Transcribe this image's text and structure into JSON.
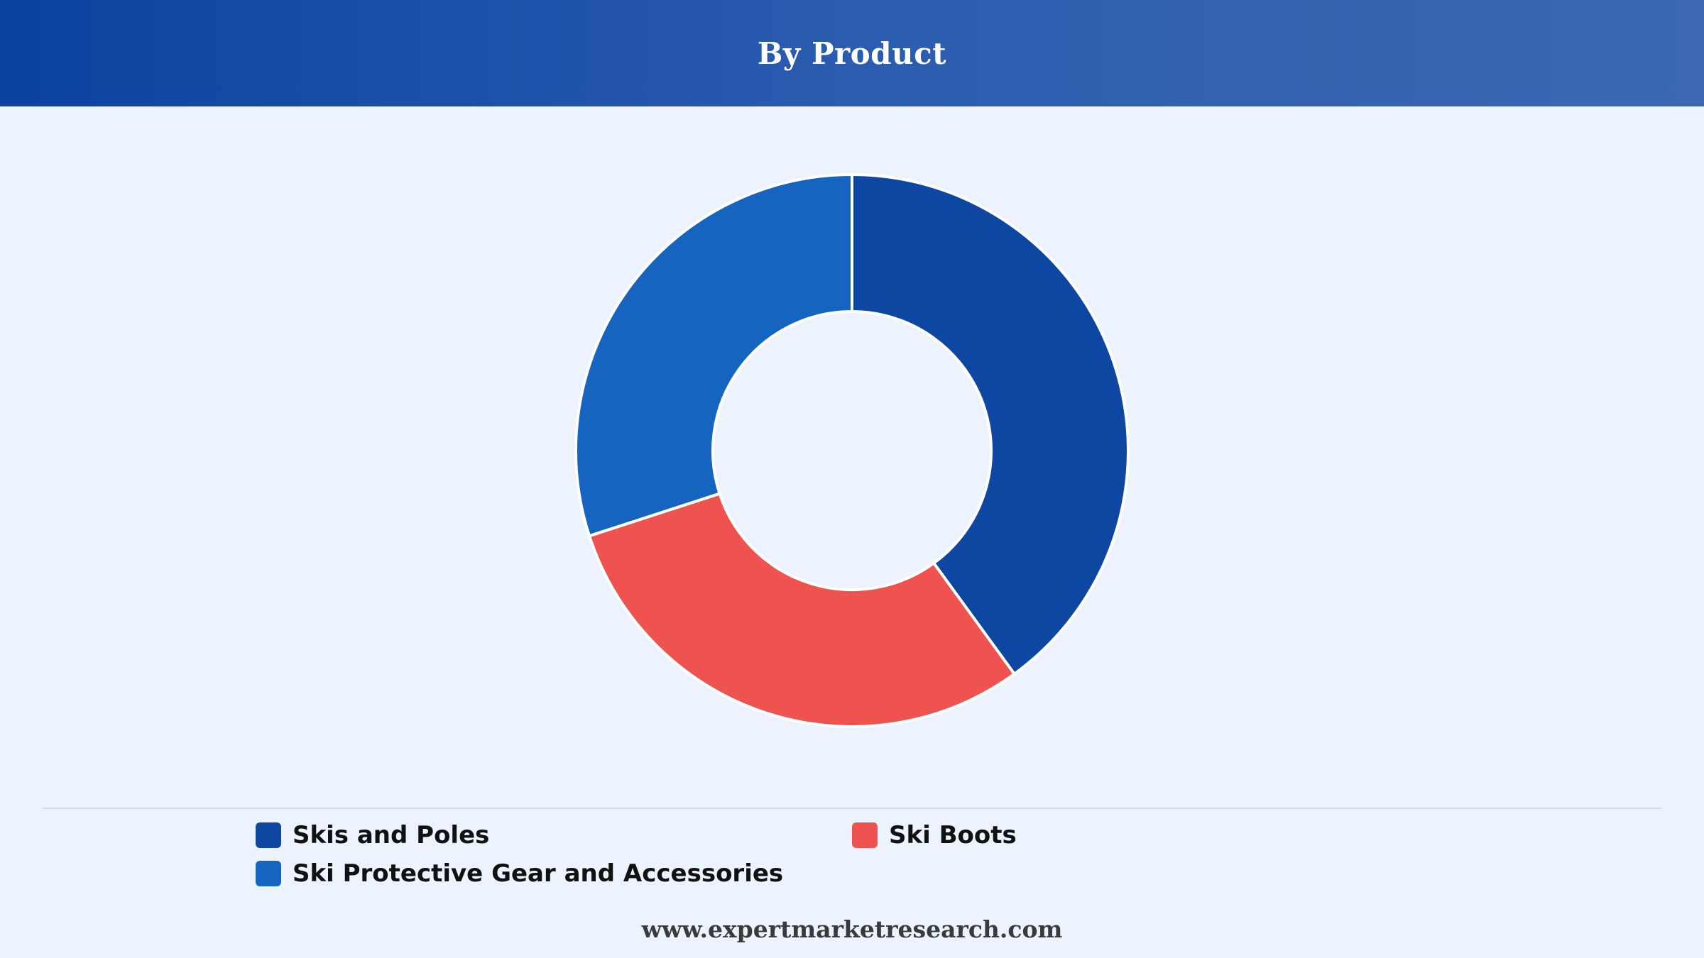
{
  "header": {
    "title": "By Product"
  },
  "chart_data": {
    "type": "pie",
    "donut": true,
    "title": "By Product",
    "categories": [
      "Skis and Poles",
      "Ski Boots",
      "Ski Protective Gear and Accessories"
    ],
    "values": [
      40,
      30,
      30
    ],
    "colors": [
      "#0d47a1",
      "#ef5350",
      "#1565c0"
    ],
    "legend_position": "bottom"
  },
  "legend": {
    "items": [
      {
        "label": "Skis and Poles",
        "color": "#0d47a1"
      },
      {
        "label": "Ski Boots",
        "color": "#ef5350"
      },
      {
        "label": "Ski Protective Gear and Accessories",
        "color": "#1565c0"
      }
    ]
  },
  "footer": {
    "text": "www.expertmarketresearch.com"
  }
}
